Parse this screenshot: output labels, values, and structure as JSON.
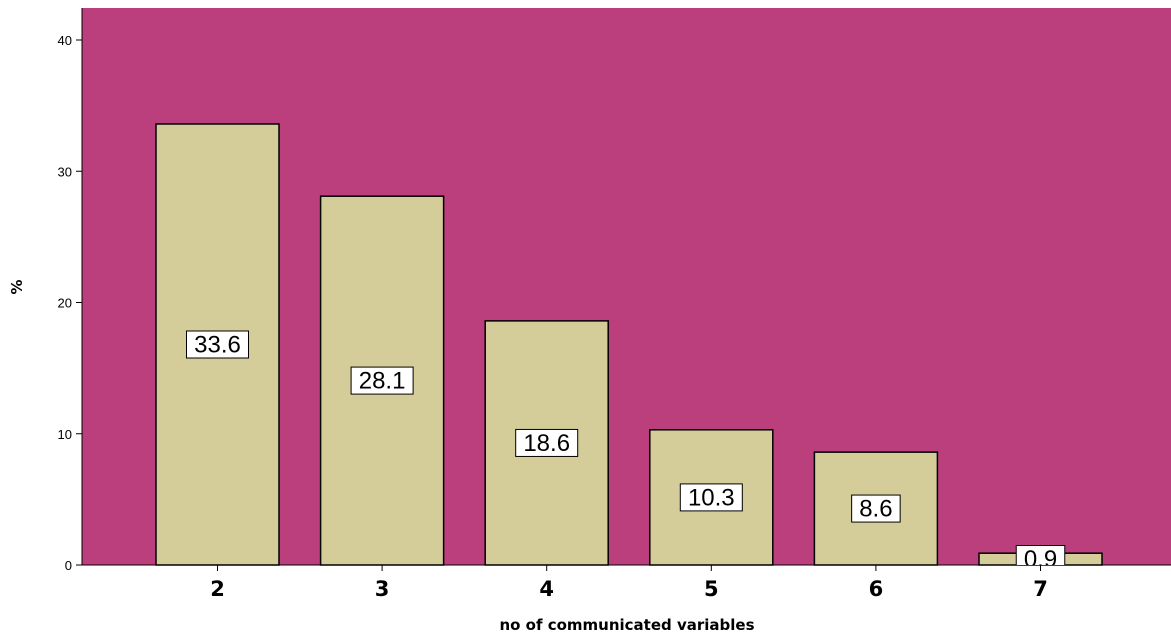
{
  "chart_data": {
    "type": "bar",
    "categories": [
      "2",
      "3",
      "4",
      "5",
      "6",
      "7"
    ],
    "values": [
      33.6,
      28.1,
      18.6,
      10.3,
      8.6,
      0.9
    ],
    "data_labels": [
      "33.6",
      "28.1",
      "18.6",
      "10.3",
      "8.6",
      "0.9"
    ],
    "xlabel": "no of communicated variables",
    "ylabel": "%",
    "ylim": [
      0,
      42
    ],
    "yticks": [
      0,
      10,
      20,
      30,
      40
    ],
    "ytick_labels": [
      "0",
      "10",
      "20",
      "30",
      "40"
    ],
    "grid": false,
    "legend": "none",
    "colors": {
      "plot_background": "#bc3f7d",
      "bar_fill": "#d4cd9a",
      "bar_stroke": "#000000",
      "label_box": "#ffffff"
    }
  }
}
